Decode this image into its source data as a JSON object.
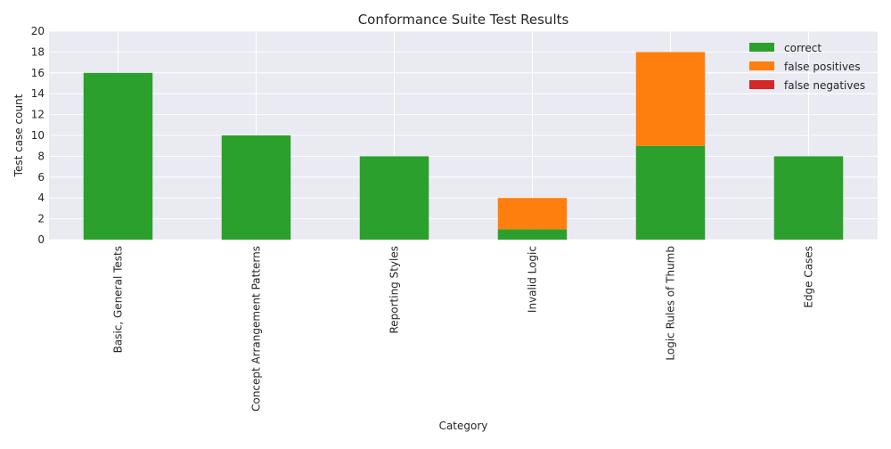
{
  "chart_data": {
    "type": "bar",
    "stacked": true,
    "title": "Conformance Suite Test Results",
    "xlabel": "Category",
    "ylabel": "Test case count",
    "ylim": [
      0,
      20
    ],
    "yticks": [
      0,
      2,
      4,
      6,
      8,
      10,
      12,
      14,
      16,
      18,
      20
    ],
    "grid": true,
    "legend_position": "top-right",
    "categories": [
      "Basic, General Tests",
      "Concept Arrangement Patterns",
      "Reporting Styles",
      "Invalid Logic",
      "Logic Rules of Thumb",
      "Edge Cases"
    ],
    "series": [
      {
        "name": "correct",
        "color": "#2ca02c",
        "values": [
          16,
          10,
          8,
          1,
          9,
          8
        ]
      },
      {
        "name": "false positives",
        "color": "#ff7f0e",
        "values": [
          0,
          0,
          0,
          3,
          9,
          0
        ]
      },
      {
        "name": "false negatives",
        "color": "#d62728",
        "values": [
          0,
          0,
          0,
          0,
          0,
          0
        ]
      }
    ],
    "colors": {
      "plot_background": "#eaeaf2",
      "grid": "#ffffff"
    }
  }
}
